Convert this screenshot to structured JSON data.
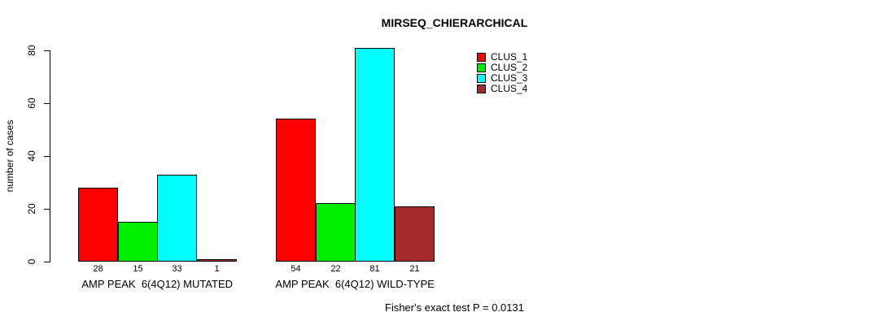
{
  "chart_data": {
    "type": "bar",
    "title": "MIRSEQ_CHIERARCHICAL",
    "xlabel": "",
    "ylabel": "number of cases",
    "ylim": [
      0,
      80
    ],
    "yticks": [
      0,
      20,
      40,
      60,
      80
    ],
    "grid": false,
    "legend_position": "top-right",
    "categories": [
      "AMP PEAK  6(4Q12) MUTATED",
      "AMP PEAK  6(4Q12) WILD-TYPE"
    ],
    "series": [
      {
        "name": "CLUS_1",
        "color": "#FF0000",
        "values": [
          28,
          54
        ]
      },
      {
        "name": "CLUS_2",
        "color": "#00EE00",
        "values": [
          15,
          22
        ]
      },
      {
        "name": "CLUS_3",
        "color": "#00FFFF",
        "values": [
          33,
          81
        ]
      },
      {
        "name": "CLUS_4",
        "color": "#A52A2A",
        "values": [
          1,
          21
        ]
      }
    ],
    "bar_value_labels": [
      [
        28,
        15,
        33,
        1
      ],
      [
        54,
        22,
        81,
        21
      ]
    ],
    "annotation": "Fisher's exact test P = 0.0131"
  }
}
